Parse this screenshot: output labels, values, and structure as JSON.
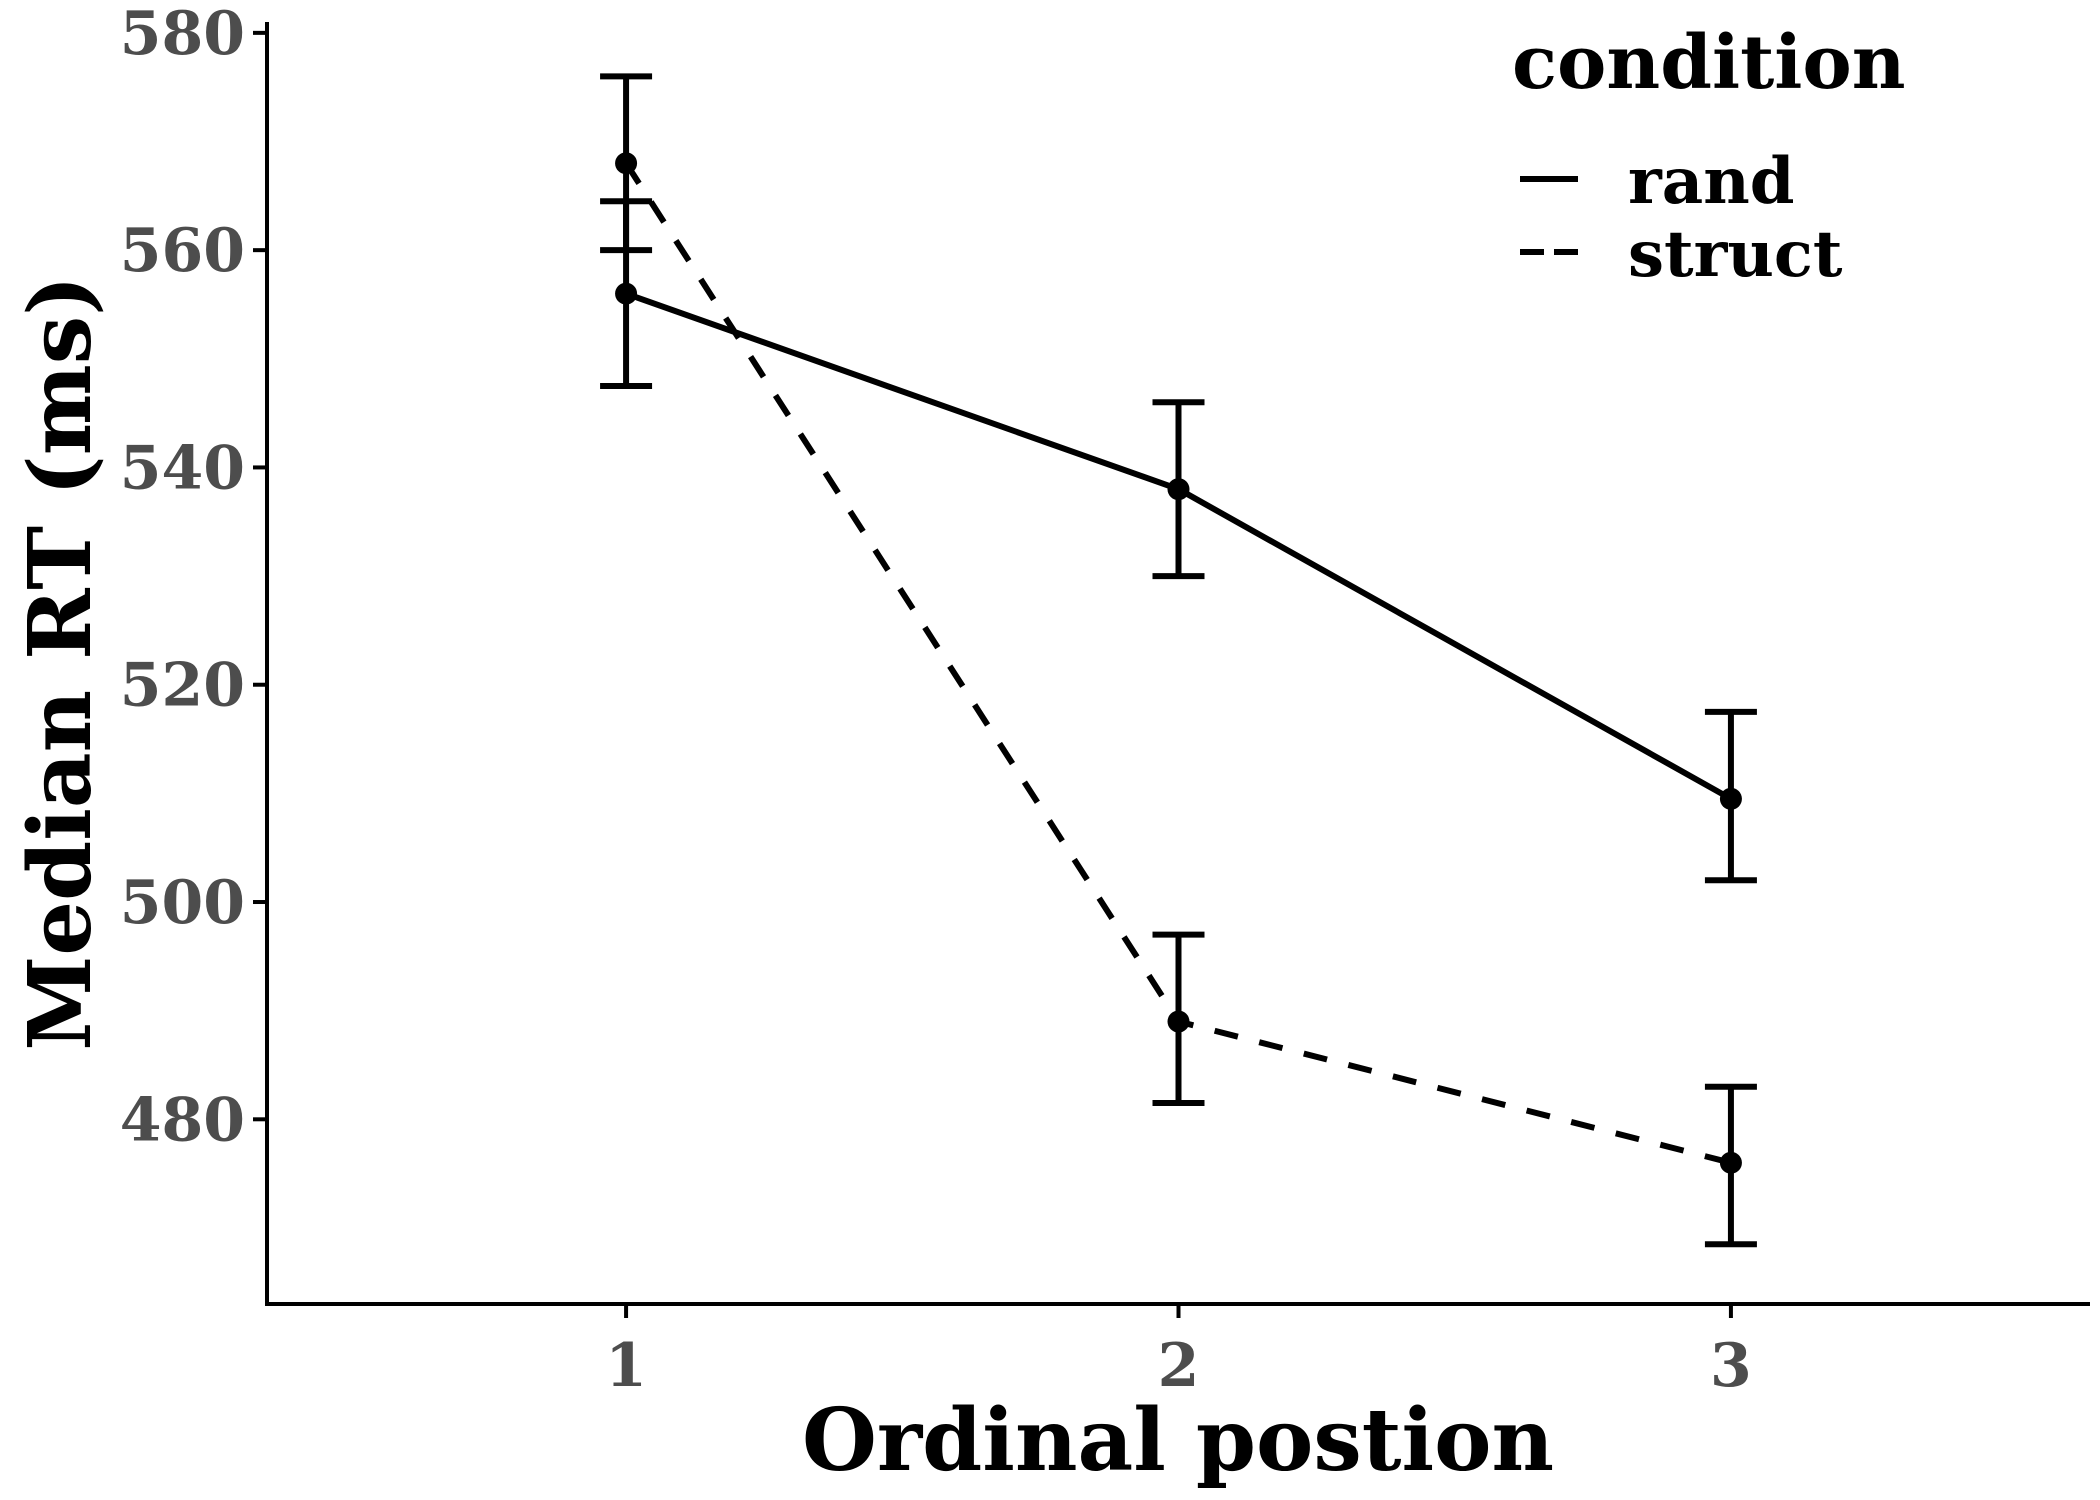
{
  "chart_data": {
    "type": "line",
    "xlabel": "Ordinal postion",
    "ylabel": "Median RT (ms)",
    "xlim": [
      0.35,
      3.65
    ],
    "ylim": [
      463,
      581
    ],
    "x_ticks": [
      1,
      2,
      3
    ],
    "y_ticks": [
      480,
      500,
      520,
      540,
      560,
      580
    ],
    "grid": false,
    "legend": {
      "title": "condition",
      "placement": "top-right",
      "entries": [
        {
          "label": "rand",
          "linestyle": "solid"
        },
        {
          "label": "struct",
          "linestyle": "dashed"
        }
      ]
    },
    "series": [
      {
        "name": "rand",
        "linestyle": "solid",
        "color": "#000000",
        "x": [
          1,
          2,
          3
        ],
        "y": [
          556,
          538,
          509.5
        ],
        "err_low": [
          547.5,
          530,
          502
        ],
        "err_high": [
          564.5,
          546,
          517.5
        ]
      },
      {
        "name": "struct",
        "linestyle": "dashed",
        "color": "#000000",
        "x": [
          1,
          2,
          3
        ],
        "y": [
          568,
          489,
          476
        ],
        "err_low": [
          560,
          481.5,
          468.5
        ],
        "err_high": [
          576,
          497,
          483
        ]
      }
    ]
  }
}
